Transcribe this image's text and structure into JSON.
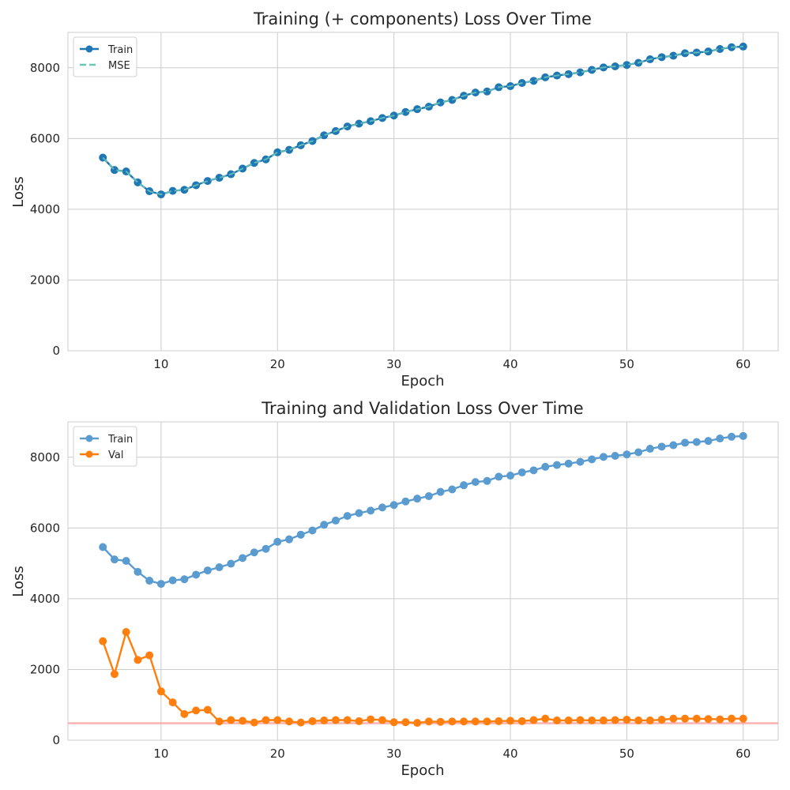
{
  "chart_data": [
    {
      "type": "line",
      "title": "Training (+ components) Loss Over Time",
      "xlabel": "Epoch",
      "ylabel": "Loss",
      "xlim": [
        2,
        63
      ],
      "ylim": [
        0,
        9000
      ],
      "xticks": [
        10,
        20,
        30,
        40,
        50,
        60
      ],
      "yticks": [
        0,
        2000,
        4000,
        6000,
        8000
      ],
      "grid": true,
      "legend_position": "top-left",
      "series": [
        {
          "name": "Train",
          "color": "#1f77b4",
          "style": "solid",
          "markers": true,
          "x": [
            5,
            6,
            7,
            8,
            9,
            10,
            11,
            12,
            13,
            14,
            15,
            16,
            17,
            18,
            19,
            20,
            21,
            22,
            23,
            24,
            25,
            26,
            27,
            28,
            29,
            30,
            31,
            32,
            33,
            34,
            35,
            36,
            37,
            38,
            39,
            40,
            41,
            42,
            43,
            44,
            45,
            46,
            47,
            48,
            49,
            50,
            51,
            52,
            53,
            54,
            55,
            56,
            57,
            58,
            59,
            60
          ],
          "values": [
            5460,
            5110,
            5070,
            4760,
            4510,
            4420,
            4520,
            4550,
            4680,
            4800,
            4890,
            4990,
            5150,
            5310,
            5410,
            5610,
            5680,
            5810,
            5930,
            6090,
            6210,
            6340,
            6420,
            6490,
            6580,
            6650,
            6750,
            6830,
            6900,
            7020,
            7090,
            7210,
            7300,
            7330,
            7450,
            7480,
            7570,
            7630,
            7730,
            7780,
            7820,
            7870,
            7940,
            8010,
            8040,
            8080,
            8140,
            8240,
            8300,
            8340,
            8410,
            8430,
            8460,
            8530,
            8580,
            8600
          ]
        },
        {
          "name": "MSE",
          "color": "#6cc6b8",
          "style": "dashed",
          "markers": false,
          "x": [
            5,
            6,
            7,
            8,
            9,
            10,
            11,
            12,
            13,
            14,
            15,
            16,
            17,
            18,
            19,
            20,
            21,
            22,
            23,
            24,
            25,
            26,
            27,
            28,
            29,
            30,
            31,
            32,
            33,
            34,
            35,
            36,
            37,
            38,
            39,
            40,
            41,
            42,
            43,
            44,
            45,
            46,
            47,
            48,
            49,
            50,
            51,
            52,
            53,
            54,
            55,
            56,
            57,
            58,
            59,
            60
          ],
          "values": [
            5460,
            5110,
            5070,
            4760,
            4510,
            4420,
            4520,
            4550,
            4680,
            4800,
            4890,
            4990,
            5150,
            5310,
            5410,
            5610,
            5680,
            5810,
            5930,
            6090,
            6210,
            6340,
            6420,
            6490,
            6580,
            6650,
            6750,
            6830,
            6900,
            7020,
            7090,
            7210,
            7300,
            7330,
            7450,
            7480,
            7570,
            7630,
            7730,
            7780,
            7820,
            7870,
            7940,
            8010,
            8040,
            8080,
            8140,
            8240,
            8300,
            8340,
            8410,
            8430,
            8460,
            8530,
            8580,
            8600
          ]
        }
      ]
    },
    {
      "type": "line",
      "title": "Training and Validation Loss Over Time",
      "xlabel": "Epoch",
      "ylabel": "Loss",
      "xlim": [
        2,
        63
      ],
      "ylim": [
        0,
        9000
      ],
      "xticks": [
        10,
        20,
        30,
        40,
        50,
        60
      ],
      "yticks": [
        0,
        2000,
        4000,
        6000,
        8000
      ],
      "grid": true,
      "legend_position": "top-left",
      "hline": {
        "y": 480,
        "color": "#ff9896"
      },
      "series": [
        {
          "name": "Train",
          "color": "#5a9bd0",
          "style": "solid",
          "markers": true,
          "x": [
            5,
            6,
            7,
            8,
            9,
            10,
            11,
            12,
            13,
            14,
            15,
            16,
            17,
            18,
            19,
            20,
            21,
            22,
            23,
            24,
            25,
            26,
            27,
            28,
            29,
            30,
            31,
            32,
            33,
            34,
            35,
            36,
            37,
            38,
            39,
            40,
            41,
            42,
            43,
            44,
            45,
            46,
            47,
            48,
            49,
            50,
            51,
            52,
            53,
            54,
            55,
            56,
            57,
            58,
            59,
            60
          ],
          "values": [
            5460,
            5110,
            5070,
            4760,
            4510,
            4420,
            4520,
            4550,
            4680,
            4800,
            4890,
            4990,
            5150,
            5310,
            5410,
            5610,
            5680,
            5810,
            5930,
            6090,
            6210,
            6340,
            6420,
            6490,
            6580,
            6650,
            6750,
            6830,
            6900,
            7020,
            7090,
            7210,
            7300,
            7330,
            7450,
            7480,
            7570,
            7630,
            7730,
            7780,
            7820,
            7870,
            7940,
            8010,
            8040,
            8080,
            8140,
            8240,
            8300,
            8340,
            8410,
            8430,
            8460,
            8530,
            8580,
            8600
          ]
        },
        {
          "name": "Val",
          "color": "#ff7f0e",
          "style": "solid",
          "markers": true,
          "x": [
            5,
            6,
            7,
            8,
            9,
            10,
            11,
            12,
            13,
            14,
            15,
            16,
            17,
            18,
            19,
            20,
            21,
            22,
            23,
            24,
            25,
            26,
            27,
            28,
            29,
            30,
            31,
            32,
            33,
            34,
            35,
            36,
            37,
            38,
            39,
            40,
            41,
            42,
            43,
            44,
            45,
            46,
            47,
            48,
            49,
            50,
            51,
            52,
            53,
            54,
            55,
            56,
            57,
            58,
            59,
            60
          ],
          "values": [
            2800,
            1870,
            3060,
            2270,
            2400,
            1380,
            1070,
            740,
            840,
            860,
            530,
            570,
            550,
            500,
            570,
            570,
            530,
            500,
            540,
            560,
            570,
            570,
            540,
            590,
            570,
            510,
            510,
            490,
            530,
            520,
            530,
            530,
            530,
            530,
            540,
            550,
            540,
            570,
            610,
            560,
            560,
            570,
            560,
            560,
            570,
            580,
            560,
            560,
            580,
            610,
            610,
            610,
            600,
            590,
            610,
            610
          ]
        }
      ]
    }
  ]
}
